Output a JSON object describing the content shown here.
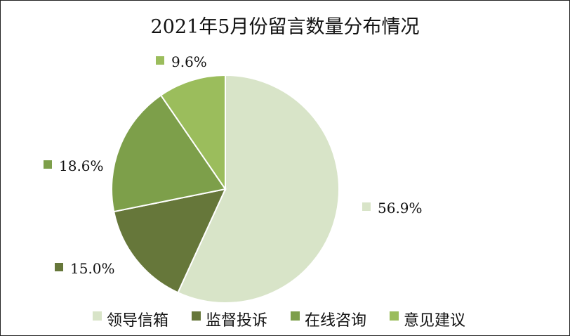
{
  "chart_data": {
    "type": "pie",
    "title": "2021年5月份留言数量分布情况",
    "categories": [
      "领导信箱",
      "监督投诉",
      "在线咨询",
      "意见建议"
    ],
    "values": [
      56.9,
      15.0,
      18.6,
      9.6
    ],
    "data_labels": [
      "56.9%",
      "15.0%",
      "18.6%",
      "9.6%"
    ],
    "colors": [
      "#d8e4c8",
      "#66773a",
      "#7d9f4a",
      "#9bbd5c"
    ],
    "legend": "bottom",
    "start": "12 o'clock, clockwise"
  }
}
